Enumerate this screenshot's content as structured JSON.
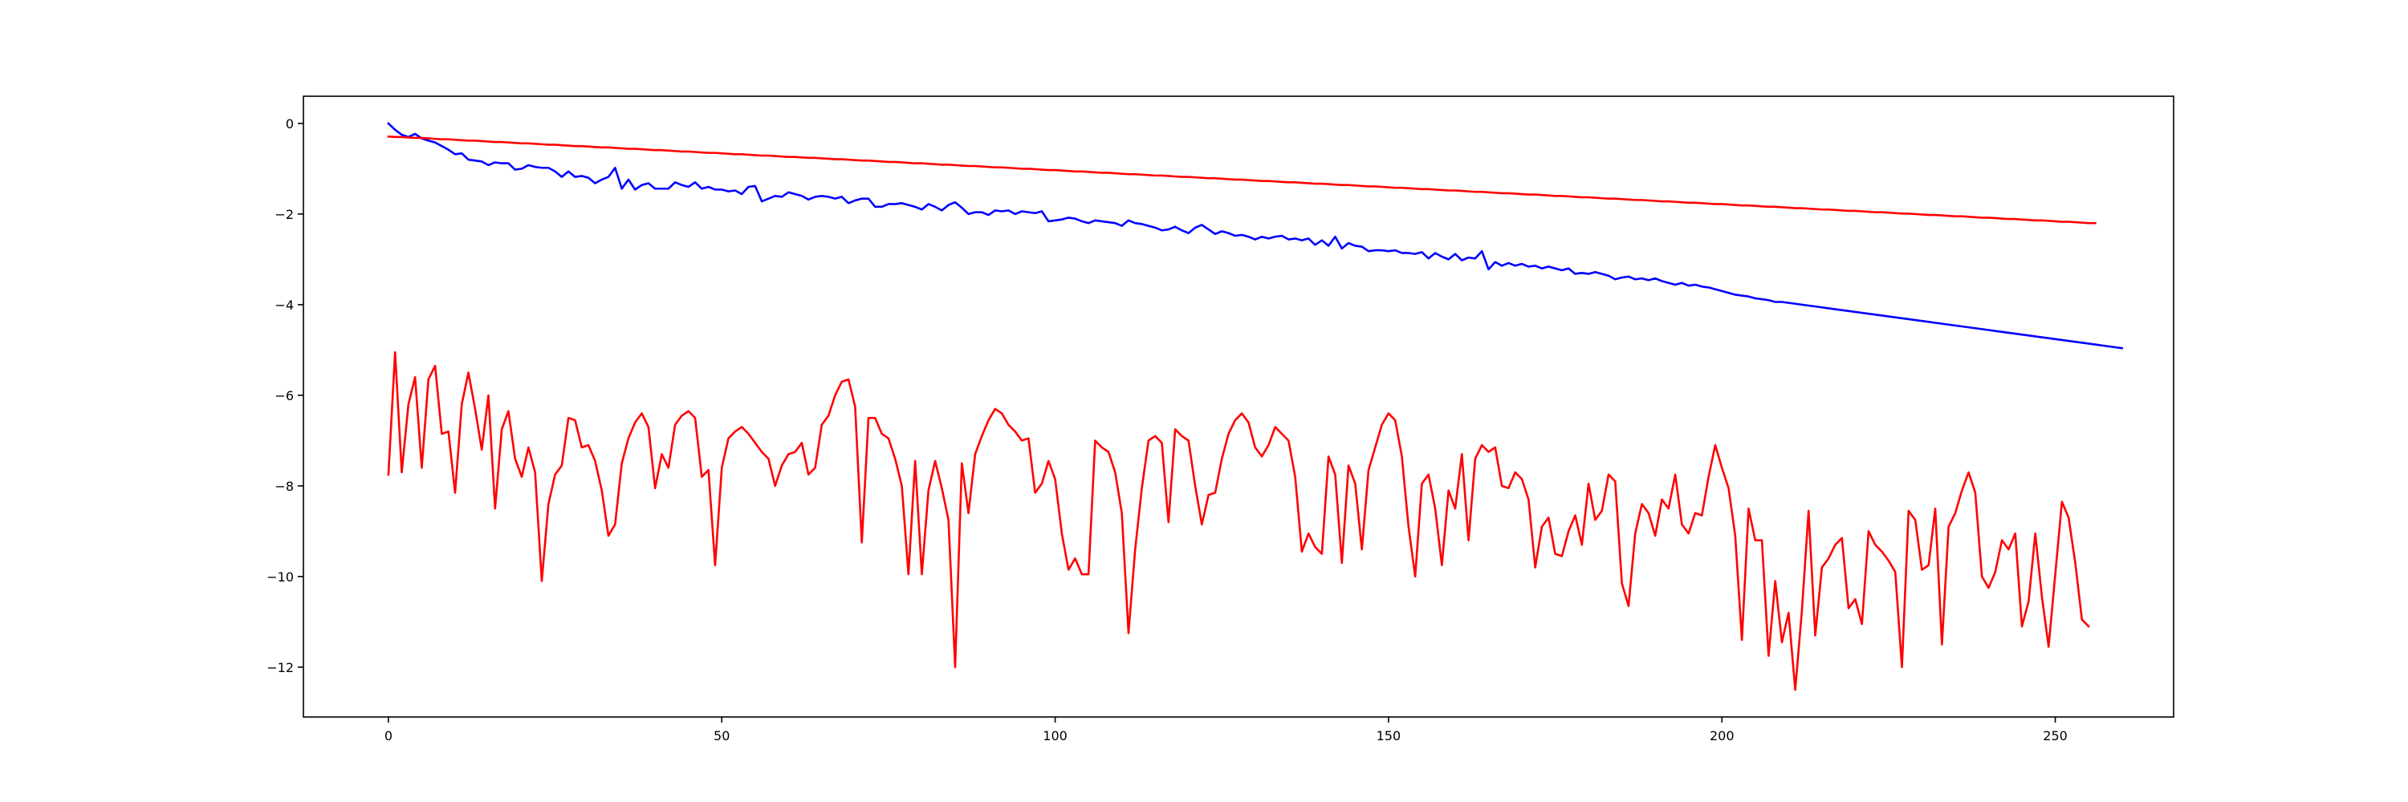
{
  "chart_data": {
    "type": "line",
    "title": "",
    "xlabel": "",
    "ylabel": "",
    "xlim": [
      -12.75,
      267.75
    ],
    "ylim": [
      -13.1,
      0.6
    ],
    "grid": false,
    "legend": "none",
    "x_ticks": [
      0,
      50,
      100,
      150,
      200,
      250
    ],
    "y_ticks": [
      0,
      -2,
      -4,
      -6,
      -8,
      -10,
      -12
    ],
    "x_tick_labels": [
      "0",
      "50",
      "100",
      "150",
      "200",
      "250"
    ],
    "y_tick_labels": [
      "0",
      "−2",
      "−4",
      "−6",
      "−8",
      "−10",
      "−12"
    ],
    "x_start": 0,
    "x_step": 1,
    "series": [
      {
        "color": "#0000ff",
        "values": [
          0.0,
          -0.14,
          -0.25,
          -0.3,
          -0.23,
          -0.33,
          -0.38,
          -0.42,
          -0.5,
          -0.58,
          -0.68,
          -0.66,
          -0.8,
          -0.82,
          -0.84,
          -0.92,
          -0.86,
          -0.88,
          -0.88,
          -1.02,
          -1.0,
          -0.92,
          -0.96,
          -0.98,
          -0.98,
          -1.06,
          -1.18,
          -1.06,
          -1.18,
          -1.16,
          -1.2,
          -1.32,
          -1.24,
          -1.18,
          -0.98,
          -1.44,
          -1.24,
          -1.46,
          -1.36,
          -1.32,
          -1.44,
          -1.44,
          -1.44,
          -1.3,
          -1.36,
          -1.4,
          -1.3,
          -1.44,
          -1.4,
          -1.46,
          -1.46,
          -1.5,
          -1.48,
          -1.56,
          -1.4,
          -1.38,
          -1.72,
          -1.66,
          -1.6,
          -1.62,
          -1.52,
          -1.56,
          -1.6,
          -1.68,
          -1.62,
          -1.6,
          -1.62,
          -1.66,
          -1.62,
          -1.76,
          -1.7,
          -1.66,
          -1.66,
          -1.84,
          -1.84,
          -1.78,
          -1.78,
          -1.76,
          -1.8,
          -1.84,
          -1.9,
          -1.78,
          -1.84,
          -1.92,
          -1.8,
          -1.74,
          -1.86,
          -2.0,
          -1.96,
          -1.96,
          -2.02,
          -1.92,
          -1.94,
          -1.92,
          -2.0,
          -1.94,
          -1.96,
          -1.98,
          -1.94,
          -2.16,
          -2.14,
          -2.12,
          -2.08,
          -2.1,
          -2.16,
          -2.2,
          -2.14,
          -2.16,
          -2.18,
          -2.2,
          -2.26,
          -2.14,
          -2.2,
          -2.22,
          -2.26,
          -2.3,
          -2.36,
          -2.34,
          -2.28,
          -2.36,
          -2.42,
          -2.3,
          -2.24,
          -2.34,
          -2.44,
          -2.38,
          -2.42,
          -2.48,
          -2.46,
          -2.5,
          -2.56,
          -2.5,
          -2.54,
          -2.5,
          -2.48,
          -2.56,
          -2.54,
          -2.58,
          -2.54,
          -2.68,
          -2.58,
          -2.7,
          -2.5,
          -2.76,
          -2.64,
          -2.7,
          -2.72,
          -2.82,
          -2.8,
          -2.8,
          -2.82,
          -2.8,
          -2.86,
          -2.86,
          -2.88,
          -2.84,
          -2.98,
          -2.86,
          -2.94,
          -3.0,
          -2.88,
          -3.02,
          -2.96,
          -2.98,
          -2.82,
          -3.22,
          -3.06,
          -3.14,
          -3.08,
          -3.14,
          -3.1,
          -3.16,
          -3.14,
          -3.2,
          -3.16,
          -3.2,
          -3.24,
          -3.2,
          -3.32,
          -3.3,
          -3.32,
          -3.28,
          -3.32,
          -3.36,
          -3.44,
          -3.4,
          -3.38,
          -3.44,
          -3.42,
          -3.46,
          -3.42,
          -3.48,
          -3.52,
          -3.56,
          -3.52,
          -3.58,
          -3.56,
          -3.6,
          -3.62,
          -3.66,
          -3.7,
          -3.74,
          -3.78,
          -3.8,
          -3.82,
          -3.86,
          -3.88,
          -3.9,
          -3.94,
          -3.94,
          -3.96,
          -3.98,
          -4.0,
          -4.02,
          -4.04,
          -4.06,
          -4.08,
          -4.1,
          -4.12,
          -4.14,
          -4.16,
          -4.18,
          -4.2,
          -4.22,
          -4.24,
          -4.26,
          -4.28,
          -4.3,
          -4.32,
          -4.34,
          -4.36,
          -4.38,
          -4.4,
          -4.42,
          -4.44,
          -4.46,
          -4.48,
          -4.5,
          -4.52,
          -4.54,
          -4.56,
          -4.58,
          -4.6,
          -4.62,
          -4.64,
          -4.66,
          -4.68,
          -4.7,
          -4.72,
          -4.74,
          -4.76,
          -4.78,
          -4.8,
          -4.82,
          -4.84,
          -4.86,
          -4.88,
          -4.9,
          -4.92,
          -4.94,
          -4.96
        ]
      },
      {
        "color": "#ff0000",
        "values": [
          -0.29,
          -0.3,
          -0.3,
          -0.31,
          -0.32,
          -0.32,
          -0.33,
          -0.34,
          -0.35,
          -0.35,
          -0.36,
          -0.37,
          -0.38,
          -0.38,
          -0.39,
          -0.4,
          -0.41,
          -0.41,
          -0.42,
          -0.43,
          -0.44,
          -0.44,
          -0.45,
          -0.46,
          -0.47,
          -0.47,
          -0.48,
          -0.49,
          -0.5,
          -0.5,
          -0.51,
          -0.52,
          -0.53,
          -0.53,
          -0.54,
          -0.55,
          -0.56,
          -0.56,
          -0.57,
          -0.58,
          -0.59,
          -0.59,
          -0.6,
          -0.61,
          -0.62,
          -0.62,
          -0.63,
          -0.64,
          -0.65,
          -0.65,
          -0.66,
          -0.67,
          -0.68,
          -0.68,
          -0.69,
          -0.7,
          -0.71,
          -0.71,
          -0.72,
          -0.73,
          -0.74,
          -0.74,
          -0.75,
          -0.76,
          -0.76,
          -0.77,
          -0.78,
          -0.79,
          -0.79,
          -0.8,
          -0.81,
          -0.82,
          -0.82,
          -0.83,
          -0.84,
          -0.85,
          -0.85,
          -0.86,
          -0.87,
          -0.88,
          -0.88,
          -0.89,
          -0.9,
          -0.91,
          -0.91,
          -0.92,
          -0.93,
          -0.94,
          -0.94,
          -0.95,
          -0.96,
          -0.97,
          -0.97,
          -0.98,
          -0.99,
          -1.0,
          -1.0,
          -1.01,
          -1.02,
          -1.03,
          -1.03,
          -1.04,
          -1.05,
          -1.06,
          -1.06,
          -1.07,
          -1.08,
          -1.09,
          -1.09,
          -1.1,
          -1.11,
          -1.12,
          -1.12,
          -1.13,
          -1.14,
          -1.15,
          -1.15,
          -1.16,
          -1.17,
          -1.18,
          -1.18,
          -1.19,
          -1.2,
          -1.21,
          -1.21,
          -1.22,
          -1.23,
          -1.24,
          -1.24,
          -1.25,
          -1.26,
          -1.27,
          -1.27,
          -1.28,
          -1.29,
          -1.3,
          -1.3,
          -1.31,
          -1.32,
          -1.33,
          -1.33,
          -1.34,
          -1.35,
          -1.36,
          -1.36,
          -1.37,
          -1.38,
          -1.39,
          -1.39,
          -1.4,
          -1.41,
          -1.42,
          -1.42,
          -1.43,
          -1.44,
          -1.45,
          -1.45,
          -1.46,
          -1.47,
          -1.48,
          -1.48,
          -1.49,
          -1.5,
          -1.51,
          -1.51,
          -1.52,
          -1.53,
          -1.54,
          -1.54,
          -1.55,
          -1.56,
          -1.57,
          -1.57,
          -1.58,
          -1.59,
          -1.6,
          -1.6,
          -1.61,
          -1.62,
          -1.63,
          -1.63,
          -1.64,
          -1.65,
          -1.66,
          -1.66,
          -1.67,
          -1.68,
          -1.69,
          -1.69,
          -1.7,
          -1.71,
          -1.72,
          -1.72,
          -1.73,
          -1.74,
          -1.75,
          -1.75,
          -1.76,
          -1.77,
          -1.78,
          -1.78,
          -1.79,
          -1.8,
          -1.81,
          -1.81,
          -1.82,
          -1.83,
          -1.84,
          -1.84,
          -1.85,
          -1.86,
          -1.87,
          -1.87,
          -1.88,
          -1.89,
          -1.9,
          -1.9,
          -1.91,
          -1.92,
          -1.93,
          -1.93,
          -1.94,
          -1.95,
          -1.96,
          -1.96,
          -1.97,
          -1.98,
          -1.99,
          -1.99,
          -2.0,
          -2.01,
          -2.02,
          -2.02,
          -2.03,
          -2.04,
          -2.05,
          -2.05,
          -2.06,
          -2.07,
          -2.08,
          -2.08,
          -2.09,
          -2.1,
          -2.11,
          -2.11,
          -2.12,
          -2.13,
          -2.14,
          -2.14,
          -2.15,
          -2.16,
          -2.17,
          -2.17,
          -2.18,
          -2.19,
          -2.2,
          -2.2
        ]
      },
      {
        "color": "#ff0000",
        "values": [
          -7.75,
          -5.05,
          -7.7,
          -6.2,
          -5.6,
          -7.6,
          -5.65,
          -5.35,
          -6.85,
          -6.8,
          -8.15,
          -6.2,
          -5.5,
          -6.3,
          -7.2,
          -6.0,
          -8.5,
          -6.75,
          -6.35,
          -7.4,
          -7.8,
          -7.15,
          -7.7,
          -10.1,
          -8.4,
          -7.75,
          -7.55,
          -6.5,
          -6.55,
          -7.15,
          -7.1,
          -7.45,
          -8.1,
          -9.1,
          -8.85,
          -7.5,
          -6.95,
          -6.6,
          -6.4,
          -6.7,
          -8.05,
          -7.3,
          -7.6,
          -6.65,
          -6.45,
          -6.35,
          -6.5,
          -7.8,
          -7.65,
          -9.75,
          -7.6,
          -6.95,
          -6.8,
          -6.7,
          -6.85,
          -7.05,
          -7.25,
          -7.4,
          -8.0,
          -7.55,
          -7.3,
          -7.25,
          -7.05,
          -7.75,
          -7.6,
          -6.65,
          -6.45,
          -6.0,
          -5.7,
          -5.65,
          -6.25,
          -9.25,
          -6.5,
          -6.5,
          -6.85,
          -6.95,
          -7.4,
          -8.0,
          -9.95,
          -7.45,
          -9.95,
          -8.1,
          -7.45,
          -8.05,
          -8.75,
          -12.0,
          -7.5,
          -8.6,
          -7.3,
          -6.9,
          -6.55,
          -6.3,
          -6.4,
          -6.65,
          -6.8,
          -7.0,
          -6.95,
          -8.15,
          -7.95,
          -7.45,
          -7.85,
          -9.05,
          -9.85,
          -9.6,
          -9.95,
          -9.95,
          -7.0,
          -7.15,
          -7.25,
          -7.7,
          -8.6,
          -11.25,
          -9.4,
          -8.05,
          -7.0,
          -6.9,
          -7.05,
          -8.8,
          -6.75,
          -6.9,
          -7.0,
          -8.0,
          -8.85,
          -8.2,
          -8.15,
          -7.4,
          -6.85,
          -6.55,
          -6.4,
          -6.6,
          -7.15,
          -7.35,
          -7.1,
          -6.7,
          -6.85,
          -7.0,
          -7.8,
          -9.45,
          -9.05,
          -9.35,
          -9.5,
          -7.35,
          -7.75,
          -9.7,
          -7.55,
          -7.95,
          -9.4,
          -7.65,
          -7.15,
          -6.65,
          -6.4,
          -6.55,
          -7.35,
          -8.9,
          -10.0,
          -7.95,
          -7.75,
          -8.5,
          -9.75,
          -8.1,
          -8.5,
          -7.3,
          -9.2,
          -7.4,
          -7.1,
          -7.25,
          -7.15,
          -8.0,
          -8.05,
          -7.7,
          -7.85,
          -8.3,
          -9.8,
          -8.9,
          -8.7,
          -9.5,
          -9.55,
          -9.0,
          -8.65,
          -9.3,
          -7.95,
          -8.75,
          -8.55,
          -7.75,
          -7.9,
          -10.15,
          -10.65,
          -9.05,
          -8.4,
          -8.6,
          -9.1,
          -8.3,
          -8.5,
          -7.75,
          -8.85,
          -9.05,
          -8.6,
          -8.65,
          -7.8,
          -7.1,
          -7.6,
          -8.05,
          -9.1,
          -11.4,
          -8.5,
          -9.2,
          -9.2,
          -11.75,
          -10.1,
          -11.45,
          -10.8,
          -12.5,
          -10.75,
          -8.55,
          -11.3,
          -9.8,
          -9.6,
          -9.3,
          -9.15,
          -10.7,
          -10.5,
          -11.05,
          -9.0,
          -9.3,
          -9.45,
          -9.65,
          -9.9,
          -12.0,
          -8.55,
          -8.75,
          -9.85,
          -9.75,
          -8.5,
          -11.5,
          -8.9,
          -8.6,
          -8.1,
          -7.7,
          -8.15,
          -10.0,
          -10.25,
          -9.9,
          -9.2,
          -9.4,
          -9.05,
          -11.1,
          -10.55,
          -9.05,
          -10.45,
          -11.55,
          -9.95,
          -8.35,
          -8.7,
          -9.7,
          -10.95,
          -11.1
        ]
      }
    ]
  }
}
